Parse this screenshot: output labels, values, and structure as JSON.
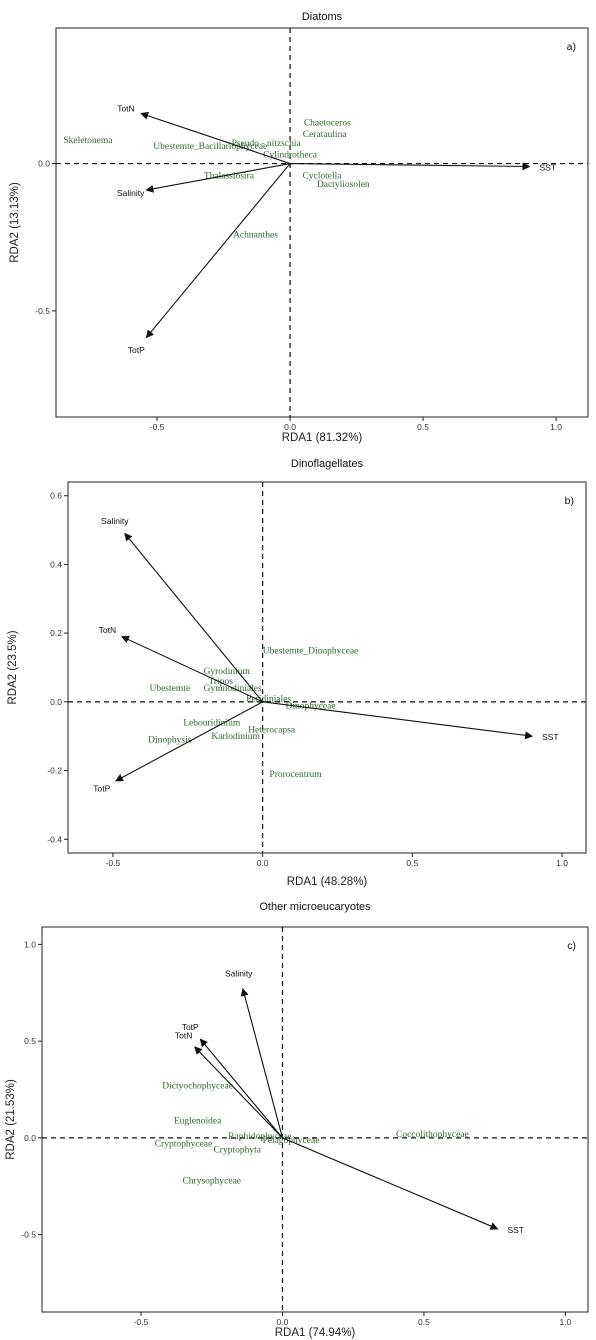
{
  "chart_data": [
    {
      "type": "scatter",
      "title": "Diatoms",
      "panel_tag": "a)",
      "xlabel": "RDA1 (81.32%)",
      "ylabel": "RDA2 (13.13%)",
      "xlim": [
        -0.88,
        1.12
      ],
      "ylim": [
        -0.86,
        0.46
      ],
      "xticks": [
        -0.5,
        0.0,
        0.5,
        1.0
      ],
      "yticks": [
        -0.5,
        0.0
      ],
      "tick_labels_x": [
        "-0.5",
        "0.0",
        "0.5",
        "1.0"
      ],
      "tick_labels_y": [
        "-0.5",
        "0.0"
      ],
      "grid": false,
      "vectors": [
        {
          "label": "TotN",
          "x": -0.56,
          "y": 0.17
        },
        {
          "label": "Salinity",
          "x": -0.54,
          "y": -0.09
        },
        {
          "label": "TotP",
          "x": -0.54,
          "y": -0.59
        },
        {
          "label": "SST",
          "x": 0.9,
          "y": -0.01
        }
      ],
      "species": [
        {
          "label": "Skeletonema",
          "x": -0.76,
          "y": 0.08
        },
        {
          "label": "Chaetoceros",
          "x": 0.14,
          "y": 0.14
        },
        {
          "label": "Cerataulina",
          "x": 0.13,
          "y": 0.1
        },
        {
          "label": "Pseudo - nitzschia",
          "x": -0.09,
          "y": 0.07
        },
        {
          "label": "Ubestemte_Bacillariophyceae",
          "x": -0.3,
          "y": 0.06
        },
        {
          "label": "Cylindrotheca",
          "x": 0.0,
          "y": 0.03
        },
        {
          "label": "Thalassiosira",
          "x": -0.23,
          "y": -0.04
        },
        {
          "label": "Cyclotella",
          "x": 0.12,
          "y": -0.04
        },
        {
          "label": "Dactyliosolen",
          "x": 0.2,
          "y": -0.07
        },
        {
          "label": "Achnanthes",
          "x": -0.13,
          "y": -0.24
        }
      ]
    },
    {
      "type": "scatter",
      "title": "Dinoflagellates",
      "panel_tag": "b)",
      "xlabel": "RDA1 (48.28%)",
      "ylabel": "RDA2 (23.5%)",
      "xlim": [
        -0.65,
        1.08
      ],
      "ylim": [
        -0.44,
        0.64
      ],
      "xticks": [
        -0.5,
        0.0,
        0.5,
        1.0
      ],
      "yticks": [
        -0.4,
        -0.2,
        0.0,
        0.2,
        0.4,
        0.6
      ],
      "tick_labels_x": [
        "-0.5",
        "0.0",
        "0.5",
        "1.0"
      ],
      "tick_labels_y": [
        "-0.4",
        "-0.2",
        "0.0",
        "0.2",
        "0.4",
        "0.6"
      ],
      "grid": false,
      "vectors": [
        {
          "label": "Salinity",
          "x": -0.46,
          "y": 0.49
        },
        {
          "label": "TotN",
          "x": -0.47,
          "y": 0.19
        },
        {
          "label": "TotP",
          "x": -0.49,
          "y": -0.23
        },
        {
          "label": "SST",
          "x": 0.9,
          "y": -0.1
        }
      ],
      "species": [
        {
          "label": "Ubestemte_Dinophyceae",
          "x": 0.16,
          "y": 0.15
        },
        {
          "label": "Gyrodinium",
          "x": -0.12,
          "y": 0.09
        },
        {
          "label": "Tripos",
          "x": -0.14,
          "y": 0.06
        },
        {
          "label": "Gymnodiniales",
          "x": -0.1,
          "y": 0.04
        },
        {
          "label": "Ubestemte",
          "x": -0.31,
          "y": 0.04
        },
        {
          "label": "Peridiniales",
          "x": 0.02,
          "y": 0.01
        },
        {
          "label": "Dinophyceae",
          "x": 0.16,
          "y": -0.01
        },
        {
          "label": "Lebouridinium",
          "x": -0.17,
          "y": -0.06
        },
        {
          "label": "Heterocapsa",
          "x": 0.03,
          "y": -0.08
        },
        {
          "label": "Dinophysis",
          "x": -0.31,
          "y": -0.11
        },
        {
          "label": "Karlodinium",
          "x": -0.09,
          "y": -0.1
        },
        {
          "label": "Prorocentrum",
          "x": 0.11,
          "y": -0.21
        }
      ]
    },
    {
      "type": "scatter",
      "title": "Other microeucaryotes",
      "panel_tag": "c)",
      "xlabel": "RDA1 (74.94%)",
      "ylabel": "RDA2 (21.53%)",
      "xlim": [
        -0.85,
        1.08
      ],
      "ylim": [
        -0.9,
        1.09
      ],
      "xticks": [
        -0.5,
        0.0,
        0.5,
        1.0
      ],
      "yticks": [
        -0.5,
        0.0,
        0.5,
        1.0
      ],
      "tick_labels_x": [
        "-0.5",
        "0.0",
        "0.5",
        "1.0"
      ],
      "tick_labels_y": [
        "-0.5",
        "0.0",
        "0.5",
        "1.0"
      ],
      "grid": false,
      "vectors": [
        {
          "label": "Salinity",
          "x": -0.14,
          "y": 0.77
        },
        {
          "label": "TotP",
          "x": -0.29,
          "y": 0.51
        },
        {
          "label": "TotN",
          "x": -0.31,
          "y": 0.47
        },
        {
          "label": "SST",
          "x": 0.76,
          "y": -0.47
        }
      ],
      "species": [
        {
          "label": "Dictyochophyceae",
          "x": -0.3,
          "y": 0.27
        },
        {
          "label": "Euglenoidea",
          "x": -0.3,
          "y": 0.09
        },
        {
          "label": "Coccolithophyceae",
          "x": 0.53,
          "y": 0.02
        },
        {
          "label": "Raphidophyceae",
          "x": -0.08,
          "y": 0.01
        },
        {
          "label": "Pelagophyceae",
          "x": 0.03,
          "y": -0.01
        },
        {
          "label": "Cryptophyceae",
          "x": -0.35,
          "y": -0.03
        },
        {
          "label": "Cryptophyta",
          "x": -0.16,
          "y": -0.06
        },
        {
          "label": "Chrysophyceae",
          "x": -0.25,
          "y": -0.22
        }
      ]
    }
  ]
}
